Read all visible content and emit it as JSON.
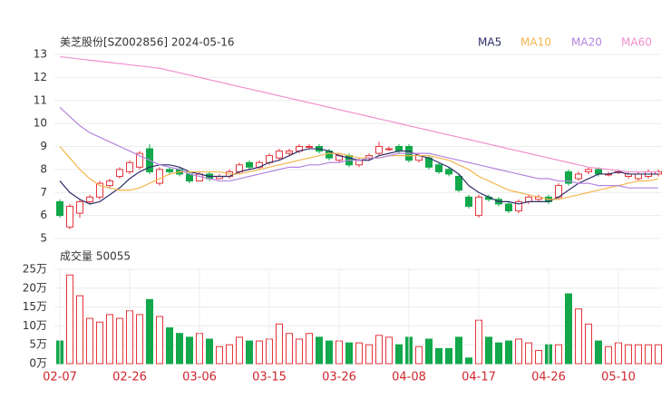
{
  "chart_data": [
    {
      "type": "candlestick",
      "title": "美芝股份[SZ002856] 2024-05-16",
      "open": [
        6.6,
        5.5,
        6.1,
        6.6,
        6.8,
        7.3,
        7.7,
        7.9,
        8.1,
        8.9,
        7.4,
        8.0,
        8.0,
        7.8,
        7.5,
        7.8,
        7.6,
        7.7,
        7.9,
        8.3,
        8.1,
        8.3,
        8.5,
        8.7,
        8.8,
        9.0,
        9.0,
        8.8,
        8.4,
        8.6,
        8.2,
        8.5,
        8.7,
        8.9,
        9.0,
        9.0,
        8.4,
        8.5,
        8.2,
        8.0,
        7.7,
        6.8,
        6.0,
        6.8,
        6.7,
        6.5,
        6.2,
        6.6,
        6.7,
        6.8,
        6.8,
        7.9,
        7.6,
        7.9,
        8.0,
        7.8,
        7.9,
        7.7,
        7.6,
        7.7,
        7.8
      ],
      "high": [
        6.7,
        6.5,
        6.7,
        6.9,
        7.5,
        7.6,
        8.1,
        8.4,
        8.8,
        9.1,
        8.1,
        8.1,
        8.1,
        7.9,
        7.9,
        7.9,
        7.8,
        8.0,
        8.3,
        8.4,
        8.4,
        8.7,
        8.9,
        8.9,
        9.1,
        9.1,
        9.1,
        8.9,
        8.7,
        8.7,
        8.5,
        8.7,
        9.2,
        9.0,
        9.1,
        9.1,
        8.7,
        8.6,
        8.3,
        8.1,
        7.8,
        6.9,
        6.9,
        6.9,
        6.8,
        6.6,
        6.7,
        6.9,
        6.9,
        6.9,
        7.4,
        8.0,
        7.9,
        8.1,
        8.1,
        7.9,
        8.0,
        7.9,
        7.9,
        8.0,
        8.0
      ],
      "low": [
        5.9,
        5.4,
        5.9,
        6.5,
        6.7,
        7.2,
        7.6,
        7.8,
        8.0,
        7.8,
        7.3,
        7.8,
        7.7,
        7.4,
        7.5,
        7.5,
        7.6,
        7.6,
        7.8,
        8.0,
        8.0,
        8.2,
        8.4,
        8.6,
        8.7,
        8.9,
        8.7,
        8.4,
        8.3,
        8.1,
        8.1,
        8.4,
        8.6,
        8.8,
        8.7,
        8.3,
        8.3,
        8.0,
        7.8,
        7.7,
        7.0,
        6.3,
        5.9,
        6.6,
        6.4,
        6.1,
        6.1,
        6.5,
        6.6,
        6.5,
        6.7,
        7.3,
        7.5,
        7.8,
        7.7,
        7.7,
        7.8,
        7.6,
        7.5,
        7.6,
        7.7
      ],
      "close": [
        6.0,
        6.4,
        6.6,
        6.8,
        7.4,
        7.5,
        8.0,
        8.3,
        8.7,
        7.9,
        8.0,
        7.9,
        7.8,
        7.5,
        7.8,
        7.6,
        7.7,
        7.9,
        8.2,
        8.1,
        8.3,
        8.6,
        8.8,
        8.8,
        9.0,
        9.0,
        8.8,
        8.5,
        8.6,
        8.2,
        8.4,
        8.6,
        9.0,
        8.9,
        8.8,
        8.4,
        8.6,
        8.1,
        7.9,
        7.8,
        7.1,
        6.4,
        6.8,
        6.7,
        6.5,
        6.2,
        6.6,
        6.8,
        6.8,
        6.6,
        7.3,
        7.4,
        7.8,
        8.0,
        7.8,
        7.8,
        7.9,
        7.8,
        7.8,
        7.9,
        7.9
      ],
      "up_color": "#e5353c",
      "down_color": "#12a84b",
      "series": [
        {
          "name": "MA5",
          "color": "#2e2e6a",
          "values": [
            7.5,
            7.0,
            6.7,
            6.5,
            6.6,
            6.9,
            7.2,
            7.6,
            7.9,
            8.1,
            8.2,
            8.2,
            8.1,
            7.9,
            7.8,
            7.7,
            7.7,
            7.7,
            7.9,
            8.0,
            8.1,
            8.3,
            8.4,
            8.6,
            8.8,
            8.9,
            8.9,
            8.8,
            8.6,
            8.5,
            8.4,
            8.4,
            8.6,
            8.7,
            8.8,
            8.8,
            8.6,
            8.5,
            8.3,
            8.1,
            7.8,
            7.3,
            7.0,
            6.8,
            6.6,
            6.6,
            6.5,
            6.6,
            6.6,
            6.6,
            6.8,
            7.1,
            7.4,
            7.6,
            7.8,
            7.8,
            7.9,
            7.8,
            7.8,
            7.8,
            7.8
          ]
        },
        {
          "name": "MA10",
          "color": "#f4b54d",
          "values": [
            9.0,
            8.5,
            8.0,
            7.6,
            7.3,
            7.2,
            7.1,
            7.1,
            7.2,
            7.4,
            7.6,
            7.8,
            7.9,
            7.9,
            7.9,
            7.9,
            7.9,
            7.8,
            7.8,
            7.9,
            8.0,
            8.1,
            8.2,
            8.3,
            8.4,
            8.5,
            8.6,
            8.7,
            8.7,
            8.6,
            8.5,
            8.5,
            8.5,
            8.6,
            8.6,
            8.6,
            8.6,
            8.6,
            8.5,
            8.4,
            8.2,
            8.0,
            7.7,
            7.5,
            7.3,
            7.1,
            7.0,
            6.9,
            6.8,
            6.7,
            6.7,
            6.8,
            6.9,
            7.0,
            7.1,
            7.2,
            7.3,
            7.4,
            7.5,
            7.5,
            7.6
          ]
        },
        {
          "name": "MA20",
          "color": "#b484dd",
          "values": [
            10.7,
            10.3,
            9.9,
            9.6,
            9.4,
            9.2,
            9.0,
            8.8,
            8.6,
            8.4,
            8.2,
            8.1,
            8.0,
            7.8,
            7.7,
            7.6,
            7.5,
            7.5,
            7.6,
            7.7,
            7.8,
            7.9,
            8.0,
            8.1,
            8.1,
            8.2,
            8.2,
            8.3,
            8.3,
            8.4,
            8.4,
            8.5,
            8.5,
            8.6,
            8.7,
            8.7,
            8.7,
            8.7,
            8.6,
            8.5,
            8.4,
            8.3,
            8.2,
            8.1,
            8.0,
            7.9,
            7.8,
            7.7,
            7.6,
            7.6,
            7.5,
            7.5,
            7.4,
            7.4,
            7.3,
            7.3,
            7.3,
            7.2,
            7.2,
            7.2,
            7.2
          ]
        },
        {
          "name": "MA60",
          "color": "#f28fd0",
          "values": [
            12.9,
            12.85,
            12.8,
            12.75,
            12.7,
            12.65,
            12.6,
            12.55,
            12.5,
            12.45,
            12.4,
            12.3,
            12.2,
            12.1,
            12.0,
            11.9,
            11.8,
            11.7,
            11.6,
            11.5,
            11.4,
            11.3,
            11.2,
            11.1,
            11.0,
            10.9,
            10.8,
            10.7,
            10.6,
            10.5,
            10.4,
            10.3,
            10.2,
            10.1,
            10.0,
            9.9,
            9.8,
            9.7,
            9.6,
            9.5,
            9.4,
            9.3,
            9.2,
            9.1,
            9.0,
            8.9,
            8.8,
            8.7,
            8.6,
            8.5,
            8.4,
            8.3,
            8.2,
            8.1,
            8.05,
            8.0,
            7.95,
            7.9,
            7.9,
            7.9,
            7.9
          ]
        }
      ],
      "ylim": [
        5,
        13
      ],
      "yticks": [
        5,
        6,
        7,
        8,
        9,
        10,
        11,
        12,
        13
      ],
      "grid": true,
      "legend": "top-right"
    },
    {
      "type": "bar",
      "title": "成交量 50055",
      "categories": [
        "02-07",
        null,
        null,
        null,
        null,
        null,
        null,
        "02-26",
        null,
        null,
        null,
        null,
        null,
        null,
        "03-06",
        null,
        null,
        null,
        null,
        null,
        null,
        "03-15",
        null,
        null,
        null,
        null,
        null,
        null,
        "03-26",
        null,
        null,
        null,
        null,
        null,
        null,
        "04-08",
        null,
        null,
        null,
        null,
        null,
        null,
        "04-17",
        null,
        null,
        null,
        null,
        null,
        null,
        "04-26",
        null,
        null,
        null,
        null,
        null,
        null,
        "05-10",
        null,
        null,
        null,
        null
      ],
      "values": [
        6,
        23.5,
        18,
        12,
        11,
        13,
        12,
        14,
        13,
        17,
        12.5,
        9.5,
        8,
        7,
        8,
        6.5,
        4.5,
        5,
        7,
        6,
        6,
        6.5,
        10.5,
        8,
        6.5,
        8,
        7,
        6,
        6,
        5.5,
        5.5,
        5,
        7.5,
        7,
        5,
        7,
        4.5,
        6.5,
        4,
        4,
        7,
        1.5,
        11.5,
        7,
        5.5,
        6,
        6.5,
        5.5,
        3.5,
        5,
        5,
        18.5,
        14.5,
        10.5,
        6,
        4.5,
        5.5,
        5,
        5,
        5,
        5
      ],
      "ylim": [
        0,
        25
      ],
      "yticks": [
        {
          "value": 0,
          "label": "0万"
        },
        {
          "value": 5,
          "label": "5万"
        },
        {
          "value": 10,
          "label": "10万"
        },
        {
          "value": 15,
          "label": "15万"
        },
        {
          "value": 20,
          "label": "20万"
        },
        {
          "value": 25,
          "label": "25万"
        }
      ],
      "grid": true
    }
  ]
}
